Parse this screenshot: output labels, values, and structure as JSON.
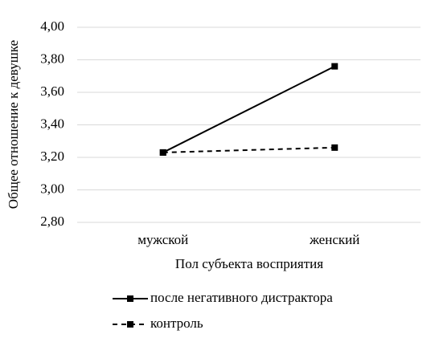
{
  "chart_data": {
    "type": "line",
    "y_label": "Общее отношение к девушке",
    "x_label": "Пол субъекта восприятия",
    "categories": [
      "мужской",
      "женский"
    ],
    "series": [
      {
        "name": "после негативного дистрактора",
        "color": "#000000",
        "line_style": "solid",
        "values": [
          3.23,
          3.76
        ]
      },
      {
        "name": "контроль",
        "color": "#000000",
        "line_style": "dashed",
        "values": [
          3.23,
          3.26
        ]
      }
    ],
    "ylim": [
      2.8,
      4.0
    ],
    "yticks": [
      {
        "value": 2.8,
        "label": "2,80"
      },
      {
        "value": 3.0,
        "label": "3,00"
      },
      {
        "value": 3.2,
        "label": "3,20"
      },
      {
        "value": 3.4,
        "label": "3,40"
      },
      {
        "value": 3.6,
        "label": "3,60"
      },
      {
        "value": 3.8,
        "label": "3,80"
      },
      {
        "value": 4.0,
        "label": "4,00"
      }
    ],
    "grid": true,
    "legend": "bottom"
  }
}
